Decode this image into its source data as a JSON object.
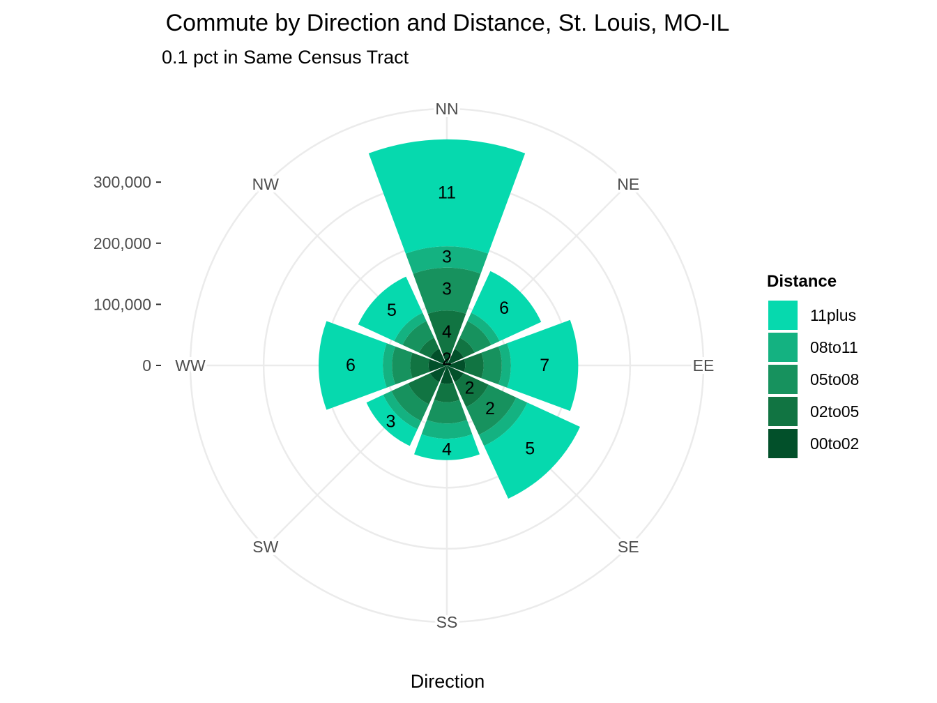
{
  "chart_data": {
    "type": "polar-stacked-bar",
    "title": "Commute by Direction and Distance, St. Louis, MO-IL",
    "subtitle": "0.1 pct in Same Census Tract",
    "xlabel": "Direction",
    "ylabel": "",
    "ylim": [
      0,
      420000
    ],
    "y_ticks": [
      {
        "value": 0,
        "label": "0"
      },
      {
        "value": 100000,
        "label": "100,000"
      },
      {
        "value": 200000,
        "label": "200,000"
      },
      {
        "value": 300000,
        "label": "300,000"
      }
    ],
    "grid": true,
    "categories": [
      "NN",
      "NE",
      "EE",
      "SE",
      "SS",
      "SW",
      "WW",
      "NW"
    ],
    "series": [
      {
        "name": "00to02",
        "color": "#02502A",
        "values": [
          20000,
          30000,
          30000,
          30000,
          30000,
          30000,
          30000,
          30000
        ]
      },
      {
        "name": "02to05",
        "color": "#117442",
        "values": [
          70000,
          20000,
          30000,
          45000,
          30000,
          40000,
          30000,
          20000
        ]
      },
      {
        "name": "05to08",
        "color": "#17925E",
        "values": [
          70000,
          30000,
          30000,
          50000,
          35000,
          30000,
          30000,
          30000
        ]
      },
      {
        "name": "08to11",
        "color": "#14B281",
        "values": [
          35000,
          15000,
          15000,
          20000,
          25000,
          15000,
          15000,
          15000
        ]
      },
      {
        "name": "11plus",
        "color": "#06D9AE",
        "values": [
          175000,
          75000,
          110000,
          95000,
          35000,
          30000,
          105000,
          65000
        ]
      }
    ],
    "segment_labels": [
      {
        "category": "NN",
        "series": "00to02",
        "label": "2"
      },
      {
        "category": "NN",
        "series": "02to05",
        "label": "4"
      },
      {
        "category": "NN",
        "series": "05to08",
        "label": "3"
      },
      {
        "category": "NN",
        "series": "08to11",
        "label": "3"
      },
      {
        "category": "NN",
        "series": "11plus",
        "label": "11"
      },
      {
        "category": "NE",
        "series": "11plus",
        "label": "6"
      },
      {
        "category": "EE",
        "series": "11plus",
        "label": "7"
      },
      {
        "category": "SE",
        "series": "02to05",
        "label": "2"
      },
      {
        "category": "SE",
        "series": "05to08",
        "label": "2"
      },
      {
        "category": "SE",
        "series": "11plus",
        "label": "5"
      },
      {
        "category": "SS",
        "series": "11plus",
        "label": "4"
      },
      {
        "category": "SW",
        "series": "11plus",
        "label": "3"
      },
      {
        "category": "WW",
        "series": "11plus",
        "label": "6"
      },
      {
        "category": "NW",
        "series": "11plus",
        "label": "5"
      }
    ],
    "legend": {
      "title": "Distance",
      "placement": "right",
      "items": [
        "11plus",
        "08to11",
        "05to08",
        "02to05",
        "00to02"
      ]
    }
  }
}
